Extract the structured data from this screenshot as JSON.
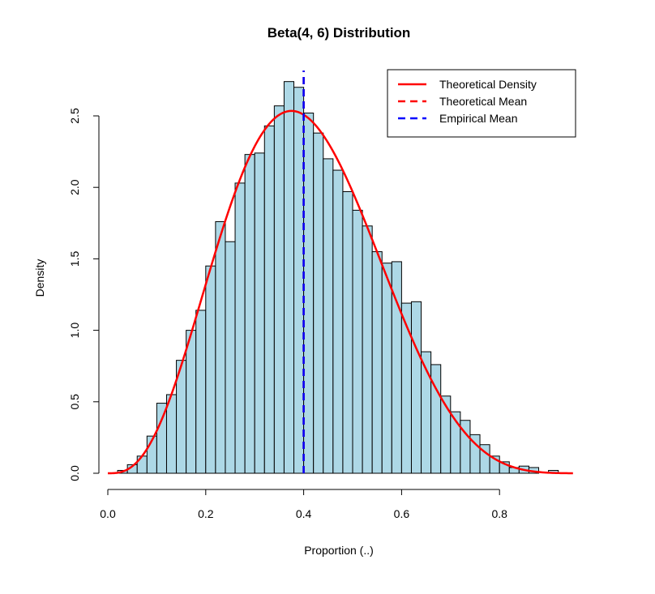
{
  "chart_data": {
    "type": "histogram",
    "title": "Beta(4, 6) Distribution",
    "xlabel": "Proportion (..)",
    "ylabel": "Density",
    "xlim": [
      0.0,
      0.95
    ],
    "ylim": [
      0.0,
      2.7
    ],
    "x_ticks": [
      0.0,
      0.2,
      0.4,
      0.6,
      0.8
    ],
    "x_tick_labels": [
      "0.0",
      "0.2",
      "0.4",
      "0.6",
      "0.8"
    ],
    "y_ticks": [
      0.0,
      0.5,
      1.0,
      1.5,
      2.0,
      2.5
    ],
    "y_tick_labels": [
      "0.0",
      "0.5",
      "1.0",
      "1.5",
      "2.0",
      "2.5"
    ],
    "bin_width": 0.02,
    "bins_start": [
      0.02,
      0.04,
      0.06,
      0.08,
      0.1,
      0.12,
      0.14,
      0.16,
      0.18,
      0.2,
      0.22,
      0.24,
      0.26,
      0.28,
      0.3,
      0.32,
      0.34,
      0.36,
      0.38,
      0.4,
      0.42,
      0.44,
      0.46,
      0.48,
      0.5,
      0.52,
      0.54,
      0.56,
      0.58,
      0.6,
      0.62,
      0.64,
      0.66,
      0.68,
      0.7,
      0.72,
      0.74,
      0.76,
      0.78,
      0.8,
      0.82,
      0.84,
      0.86,
      0.88,
      0.9
    ],
    "bins_density": [
      0.02,
      0.06,
      0.12,
      0.26,
      0.49,
      0.55,
      0.79,
      1.0,
      1.14,
      1.45,
      1.76,
      1.62,
      2.03,
      2.23,
      2.24,
      2.43,
      2.57,
      2.74,
      2.7,
      2.52,
      2.38,
      2.2,
      2.12,
      1.97,
      1.84,
      1.73,
      1.55,
      1.47,
      1.48,
      1.19,
      1.2,
      0.85,
      0.76,
      0.54,
      0.43,
      0.37,
      0.27,
      0.2,
      0.12,
      0.08,
      0.04,
      0.05,
      0.04,
      0.0,
      0.02
    ],
    "density_curve": {
      "distribution": "beta",
      "alpha": 4,
      "beta": 6,
      "color": "#ff0000"
    },
    "theoretical_mean": 0.4,
    "empirical_mean": 0.4,
    "colors": {
      "bar_fill": "#add8e6",
      "bar_edge": "#000000",
      "theoretical": "#ff0000",
      "empirical": "#0000ff"
    },
    "legend": {
      "position": "top-right",
      "entries": [
        {
          "label": "Theoretical Density",
          "color": "#ff0000",
          "style": "solid"
        },
        {
          "label": "Theoretical Mean",
          "color": "#ff0000",
          "style": "dashed"
        },
        {
          "label": "Empirical Mean",
          "color": "#0000ff",
          "style": "dashed"
        }
      ]
    }
  }
}
